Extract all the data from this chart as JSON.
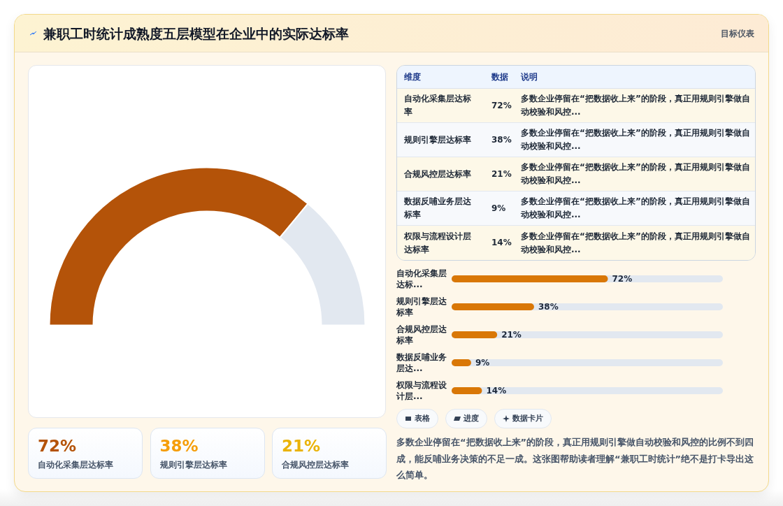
{
  "chart_data": [
    {
      "type": "donut",
      "title": "兼职工时统计成熟度五层模型在企业中的实际达标率",
      "annotations": [
        "目标仪表"
      ],
      "categories": [
        null,
        null
      ],
      "values": [
        72,
        28
      ],
      "colors": [
        "#b45309",
        "#e2e8f0"
      ]
    },
    {
      "type": "other",
      "categories": [
        "自动化采集层达标率",
        "规则引擎层达标率",
        "合规风控层达标率",
        "数据反哺业务层达标率",
        "权限与流程设计层达标率"
      ],
      "value_labels": [
        "72%",
        "38%",
        "21%",
        "9%",
        "14%"
      ],
      "annotations": [
        "维度",
        "数据",
        "说明",
        "多数企业停留在“把数据收上来”的阶段，真正用规则引擎做自动校验和风控...",
        "多数企业停留在“把数据收上来”的阶段，真正用规则引擎做自动校验和风控...",
        "多数企业停留在“把数据收上来”的阶段，真正用规则引擎做自动校验和风控...",
        "多数企业停留在“把数据收上来”的阶段，真正用规则引擎做自动校验和风控...",
        "多数企业停留在“把数据收上来”的阶段，真正用规则引擎做自动校验和风控..."
      ]
    },
    {
      "type": "bar",
      "orientation": "horizontal",
      "categories": [
        "自动化采集层达标...",
        "规则引擎层达标率",
        "合规风控层达标率",
        "数据反哺业务层达...",
        "权限与流程设计层..."
      ],
      "values": [
        72,
        38,
        21,
        9,
        14
      ],
      "value_labels": [
        "72%",
        "38%",
        "21%",
        "9%",
        "14%"
      ],
      "color": "#d97706",
      "xlim": [
        0,
        125
      ],
      "tick_labels": false
    },
    {
      "type": "other",
      "categories": [
        "自动化采集层达标率",
        "规则引擎层达标率",
        "合规风控层达标率"
      ],
      "value_labels": [
        "72%",
        "38%",
        "21%"
      ]
    },
    {
      "type": "other",
      "annotations": [
        "表格",
        "进度",
        "数据卡片",
        "多数企业停留在“把数据收上来”的阶段，真正用规则引擎做自动校验和风控的比例不到四成，能反哺业务决策的不足一成。这张图帮助读者理解“兼职工时统计”绝不是打卡导出这么简单。"
      ]
    }
  ]
}
